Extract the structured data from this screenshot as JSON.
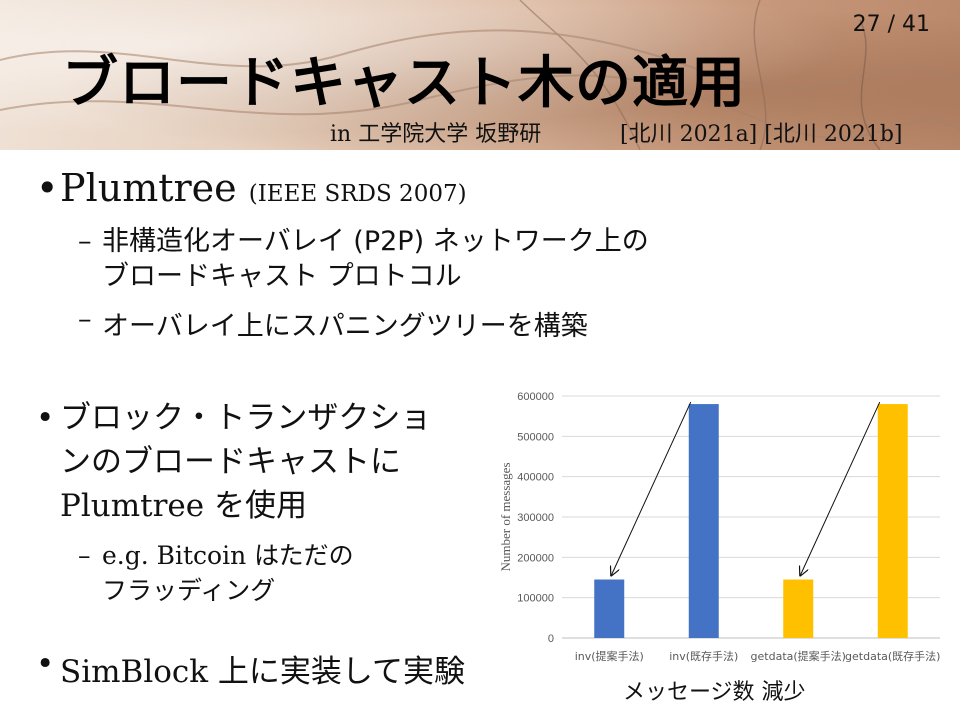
{
  "slide": {
    "number": "27 / 41",
    "title": "ブロードキャスト木の適用",
    "subtitle_lab": "in 工学院大学 坂野研",
    "subtitle_refs": "[北川 2021a] [北川 2021b]"
  },
  "bullets": {
    "b1_main": "Plumtree",
    "b1_small": "(IEEE SRDS 2007)",
    "s1_line1": "非構造化オーバレイ (P2P) ネットワーク上の",
    "s1_line2": "ブロードキャスト プロトコル",
    "s2": "オーバレイ上にスパニングツリーを構築",
    "b2_line1": "ブロック・トランザクショ",
    "b2_line2": "ンのブロードキャストに",
    "b2_line3": "Plumtree を使用",
    "s3_line1": "e.g. Bitcoin はただの",
    "s3_line2": "フラッディング",
    "b3": "SimBlock 上に実装して実験",
    "bullet_symbol": "•",
    "dash_symbol": "–"
  },
  "chart_caption": "メッセージ数 減少",
  "colors": {
    "bar_blue": "#4472C4",
    "bar_yellow": "#FFC000",
    "grid": "#d9d9d9",
    "axis_text": "#595959"
  },
  "chart_data": {
    "type": "bar",
    "categories": [
      "inv(提案手法)",
      "inv(既存手法)",
      "getdata(提案手法)",
      "getdata(既存手法)"
    ],
    "values": [
      145000,
      580000,
      145000,
      580000
    ],
    "bar_colors": [
      "#4472C4",
      "#4472C4",
      "#FFC000",
      "#FFC000"
    ],
    "ylabel": "Number of messages",
    "ylim": [
      0,
      600000
    ],
    "yticks": [
      0,
      100000,
      200000,
      300000,
      400000,
      500000,
      600000
    ],
    "ytick_labels": [
      "0",
      "100000",
      "200000",
      "300000",
      "400000",
      "500000",
      "600000"
    ],
    "grid": true,
    "annotations": [
      {
        "type": "arrow",
        "from_category": 1,
        "to_category": 0
      },
      {
        "type": "arrow",
        "from_category": 3,
        "to_category": 2
      }
    ]
  }
}
